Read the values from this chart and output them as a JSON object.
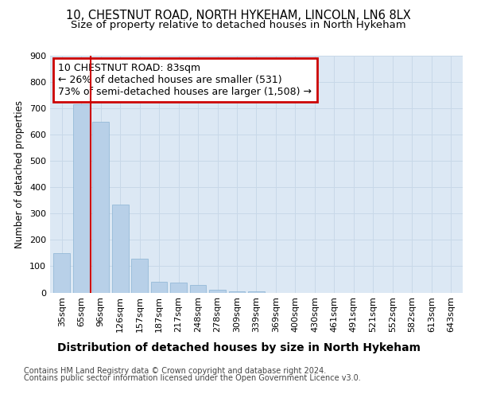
{
  "title1": "10, CHESTNUT ROAD, NORTH HYKEHAM, LINCOLN, LN6 8LX",
  "title2": "Size of property relative to detached houses in North Hykeham",
  "xlabel": "Distribution of detached houses by size in North Hykeham",
  "ylabel": "Number of detached properties",
  "categories": [
    "35sqm",
    "65sqm",
    "96sqm",
    "126sqm",
    "157sqm",
    "187sqm",
    "217sqm",
    "248sqm",
    "278sqm",
    "309sqm",
    "339sqm",
    "369sqm",
    "400sqm",
    "430sqm",
    "461sqm",
    "491sqm",
    "521sqm",
    "552sqm",
    "582sqm",
    "613sqm",
    "643sqm"
  ],
  "values": [
    150,
    715,
    650,
    335,
    130,
    42,
    38,
    30,
    12,
    5,
    5,
    0,
    0,
    0,
    0,
    0,
    0,
    0,
    0,
    0,
    0
  ],
  "bar_color": "#b8d0e8",
  "bar_edge_color": "#8ab4d4",
  "grid_color": "#c8d8e8",
  "bg_color": "#dce8f4",
  "vline_x": 1.5,
  "annotation_text": "10 CHESTNUT ROAD: 83sqm\n← 26% of detached houses are smaller (531)\n73% of semi-detached houses are larger (1,508) →",
  "annotation_box_color": "#ffffff",
  "annotation_box_edge": "#cc0000",
  "vline_color": "#cc0000",
  "footer1": "Contains HM Land Registry data © Crown copyright and database right 2024.",
  "footer2": "Contains public sector information licensed under the Open Government Licence v3.0.",
  "ylim": [
    0,
    900
  ],
  "yticks": [
    0,
    100,
    200,
    300,
    400,
    500,
    600,
    700,
    800,
    900
  ],
  "title1_fontsize": 10.5,
  "title2_fontsize": 9.5,
  "xlabel_fontsize": 10,
  "ylabel_fontsize": 8.5,
  "tick_fontsize": 8,
  "footer_fontsize": 7,
  "annotation_fontsize": 9
}
